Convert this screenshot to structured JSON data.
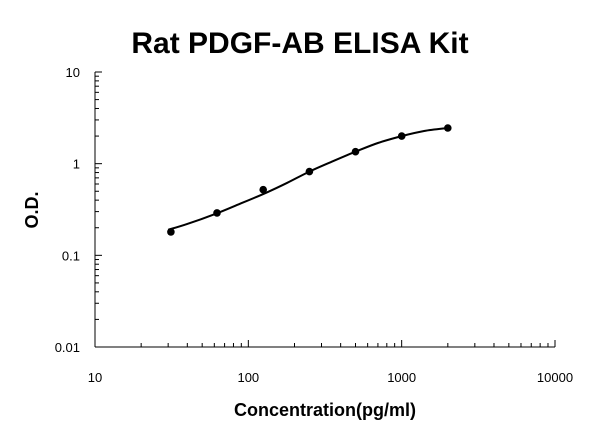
{
  "chart_data": {
    "type": "scatter",
    "title": "Rat PDGF-AB ELISA Kit",
    "xlabel": "Concentration(pg/ml)",
    "ylabel": "O.D.",
    "x_scale": "log",
    "y_scale": "log",
    "xlim": [
      10,
      10000
    ],
    "ylim": [
      0.01,
      10
    ],
    "x_ticks": [
      {
        "value": 10,
        "label": "10"
      },
      {
        "value": 100,
        "label": "100"
      },
      {
        "value": 1000,
        "label": "1000"
      },
      {
        "value": 10000,
        "label": "10000"
      }
    ],
    "y_ticks": [
      {
        "value": 0.01,
        "label": "0.01"
      },
      {
        "value": 0.1,
        "label": "0.1"
      },
      {
        "value": 1,
        "label": "1"
      },
      {
        "value": 10,
        "label": "10"
      }
    ],
    "grid": false,
    "series": [
      {
        "x": [
          31.25,
          62.5,
          125,
          250,
          500,
          1000,
          2000
        ],
        "y": [
          0.18,
          0.29,
          0.52,
          0.82,
          1.35,
          2.0,
          2.45
        ]
      }
    ],
    "fit_curve": {
      "x": [
        30,
        40,
        60,
        90,
        130,
        180,
        250,
        350,
        500,
        700,
        1000,
        1400,
        2000
      ],
      "y": [
        0.19,
        0.22,
        0.28,
        0.37,
        0.48,
        0.62,
        0.82,
        1.05,
        1.35,
        1.68,
        2.0,
        2.27,
        2.45
      ]
    },
    "colors": {
      "marker": "#000000",
      "line": "#000000",
      "background": "#ffffff"
    }
  }
}
